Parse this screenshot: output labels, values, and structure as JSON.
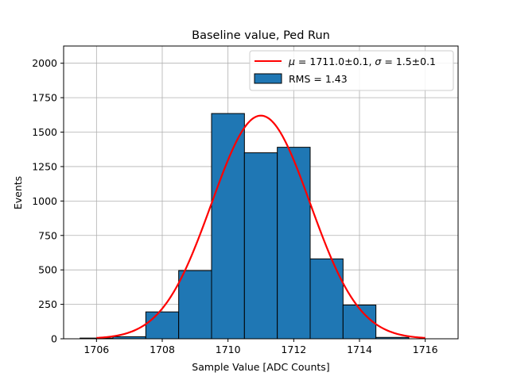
{
  "chart_data": {
    "type": "histogram",
    "title": "Baseline value, Ped Run",
    "xlabel": "Sample Value [ADC Counts]",
    "ylabel": "Events",
    "xlim": [
      1705,
      1717
    ],
    "ylim": [
      0,
      2125
    ],
    "xticks": [
      1706,
      1708,
      1710,
      1712,
      1714,
      1716
    ],
    "yticks": [
      0,
      250,
      500,
      750,
      1000,
      1250,
      1500,
      1750,
      2000
    ],
    "grid": true,
    "legend_position": "top-right",
    "histogram": {
      "name": "RMS = 1.43",
      "color": "#1f77b4",
      "edge_color": "#000000",
      "bins": [
        {
          "x0": 1705.5,
          "x1": 1706.5,
          "count": 5
        },
        {
          "x0": 1706.5,
          "x1": 1707.5,
          "count": 15
        },
        {
          "x0": 1707.5,
          "x1": 1708.5,
          "count": 195
        },
        {
          "x0": 1708.5,
          "x1": 1709.5,
          "count": 495
        },
        {
          "x0": 1709.5,
          "x1": 1710.5,
          "count": 1635
        },
        {
          "x0": 1710.5,
          "x1": 1711.5,
          "count": 1350
        },
        {
          "x0": 1711.5,
          "x1": 1712.5,
          "count": 1390
        },
        {
          "x0": 1712.5,
          "x1": 1713.5,
          "count": 580
        },
        {
          "x0": 1713.5,
          "x1": 1714.5,
          "count": 245
        },
        {
          "x0": 1714.5,
          "x1": 1715.5,
          "count": 10
        }
      ]
    },
    "fit": {
      "name_parts": {
        "mu_symbol": "μ",
        "mu_text": " = 1711.0±0.1, ",
        "sigma_symbol": "σ",
        "sigma_text": " = 1.5±0.1"
      },
      "color": "#ff0000",
      "type": "gaussian",
      "mu": 1711.0,
      "sigma": 1.5,
      "amplitude": 1620,
      "x_range": [
        1706,
        1716
      ]
    }
  }
}
